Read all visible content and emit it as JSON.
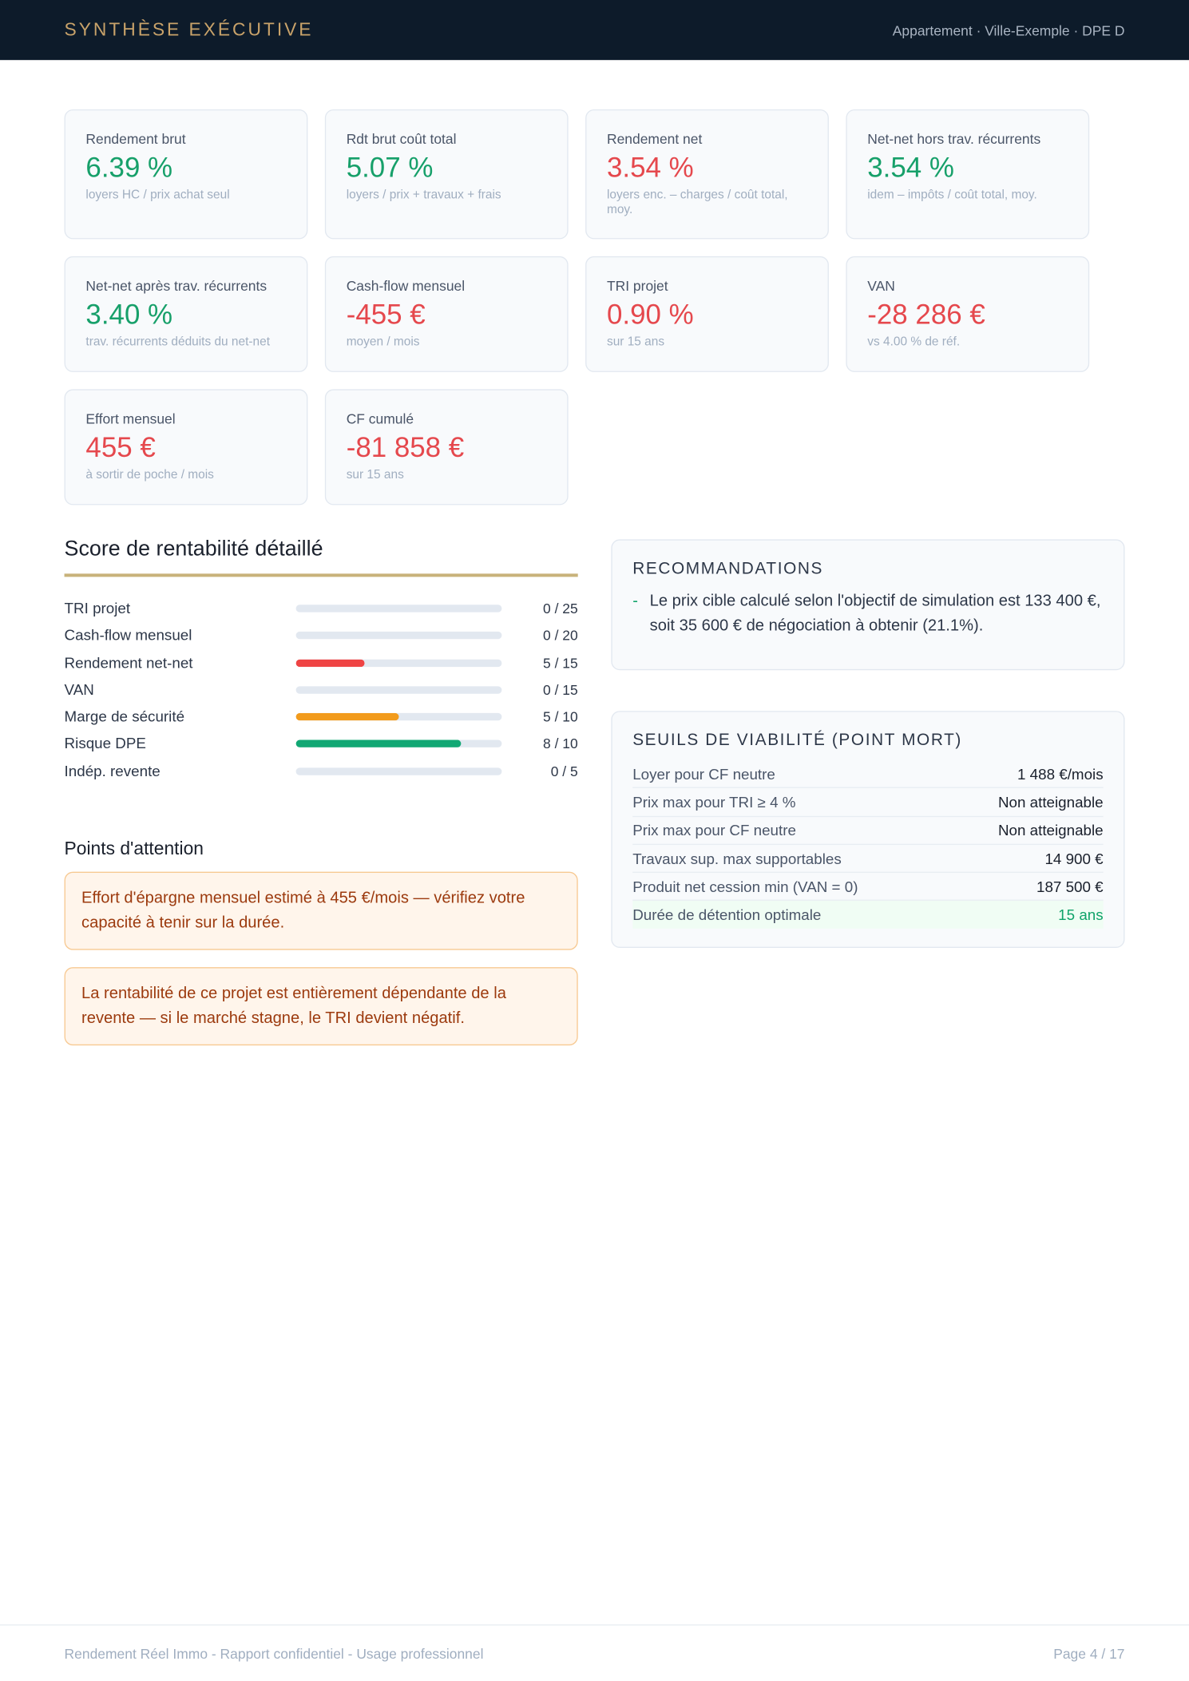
{
  "header": {
    "title": "SYNTHÈSE EXÉCUTIVE",
    "meta": "Appartement · Ville-Exemple · DPE D"
  },
  "kpis": [
    {
      "label": "Rendement brut",
      "value": "6.39 %",
      "note": "loyers HC / prix achat seul",
      "color": "#17a06a"
    },
    {
      "label": "Rdt brut coût total",
      "value": "5.07 %",
      "note": "loyers / prix + travaux + frais",
      "color": "#17a06a"
    },
    {
      "label": "Rendement net",
      "value": "3.54 %",
      "note": "loyers enc. – charges / coût total, moy.",
      "color": "#e5484d"
    },
    {
      "label": "Net-net hors trav. récurrents",
      "value": "3.54 %",
      "note": "idem – impôts / coût total, moy.",
      "color": "#17a06a"
    },
    {
      "label": "Net-net après trav. récurrents",
      "value": "3.40 %",
      "note": "trav. récurrents déduits du net-net",
      "color": "#17a06a"
    },
    {
      "label": "Cash-flow mensuel",
      "value": "-455 €",
      "note": "moyen / mois",
      "color": "#e5484d"
    },
    {
      "label": "TRI projet",
      "value": "0.90 %",
      "note": "sur 15 ans",
      "color": "#e5484d"
    },
    {
      "label": "VAN",
      "value": "-28 286 €",
      "note": "vs 4.00 % de réf.",
      "color": "#e5484d"
    },
    {
      "label": "Effort mensuel",
      "value": "455 €",
      "note": "à sortir de poche / mois",
      "color": "#e5484d"
    },
    {
      "label": "CF cumulé",
      "value": "-81 858 €",
      "note": "sur 15 ans",
      "color": "#e5484d"
    }
  ],
  "score": {
    "title": "Score de rentabilité détaillé",
    "rows": [
      {
        "label": "TRI projet",
        "value": 0,
        "max": 25,
        "text": "0 / 25",
        "color": "#e5484d"
      },
      {
        "label": "Cash-flow mensuel",
        "value": 0,
        "max": 20,
        "text": "0 / 20",
        "color": "#e5484d"
      },
      {
        "label": "Rendement net-net",
        "value": 5,
        "max": 15,
        "text": "5 / 15",
        "color": "#ef4444"
      },
      {
        "label": "VAN",
        "value": 0,
        "max": 15,
        "text": "0 / 15",
        "color": "#e5484d"
      },
      {
        "label": "Marge de sécurité",
        "value": 5,
        "max": 10,
        "text": "5 / 10",
        "color": "#f29b1c"
      },
      {
        "label": "Risque DPE",
        "value": 8,
        "max": 10,
        "text": "8 / 10",
        "color": "#12a874"
      },
      {
        "label": "Indép. revente",
        "value": 0,
        "max": 5,
        "text": "0 / 5",
        "color": "#e5484d"
      }
    ]
  },
  "attention": {
    "title": "Points d'attention",
    "items": [
      "Effort d'épargne mensuel estimé à 455 €/mois — vérifiez votre capacité à tenir sur la durée.",
      "La rentabilité de ce projet est entièrement dépendante de la revente — si le marché stagne, le TRI devient négatif."
    ]
  },
  "recommendations": {
    "title": "RECOMMANDATIONS",
    "items": [
      "Le prix cible calculé selon l'objectif de simulation est 133 400 €, soit 35 600 € de négociation à obtenir (21.1%)."
    ]
  },
  "viability": {
    "title": "SEUILS DE VIABILITÉ (POINT MORT)",
    "rows": [
      {
        "label": "Loyer pour CF neutre",
        "value": "1 488 €/mois"
      },
      {
        "label": "Prix max pour TRI ≥ 4 %",
        "value": "Non atteignable"
      },
      {
        "label": "Prix max pour CF neutre",
        "value": "Non atteignable"
      },
      {
        "label": "Travaux sup. max supportables",
        "value": "14 900 €"
      },
      {
        "label": "Produit net cession min (VAN = 0)",
        "value": "187 500 €"
      },
      {
        "label": "Durée de détention optimale",
        "value": "15 ans"
      }
    ]
  },
  "footer": {
    "left": "Rendement Réel Immo - Rapport confidentiel - Usage professionnel",
    "right": "Page 4 / 17"
  }
}
